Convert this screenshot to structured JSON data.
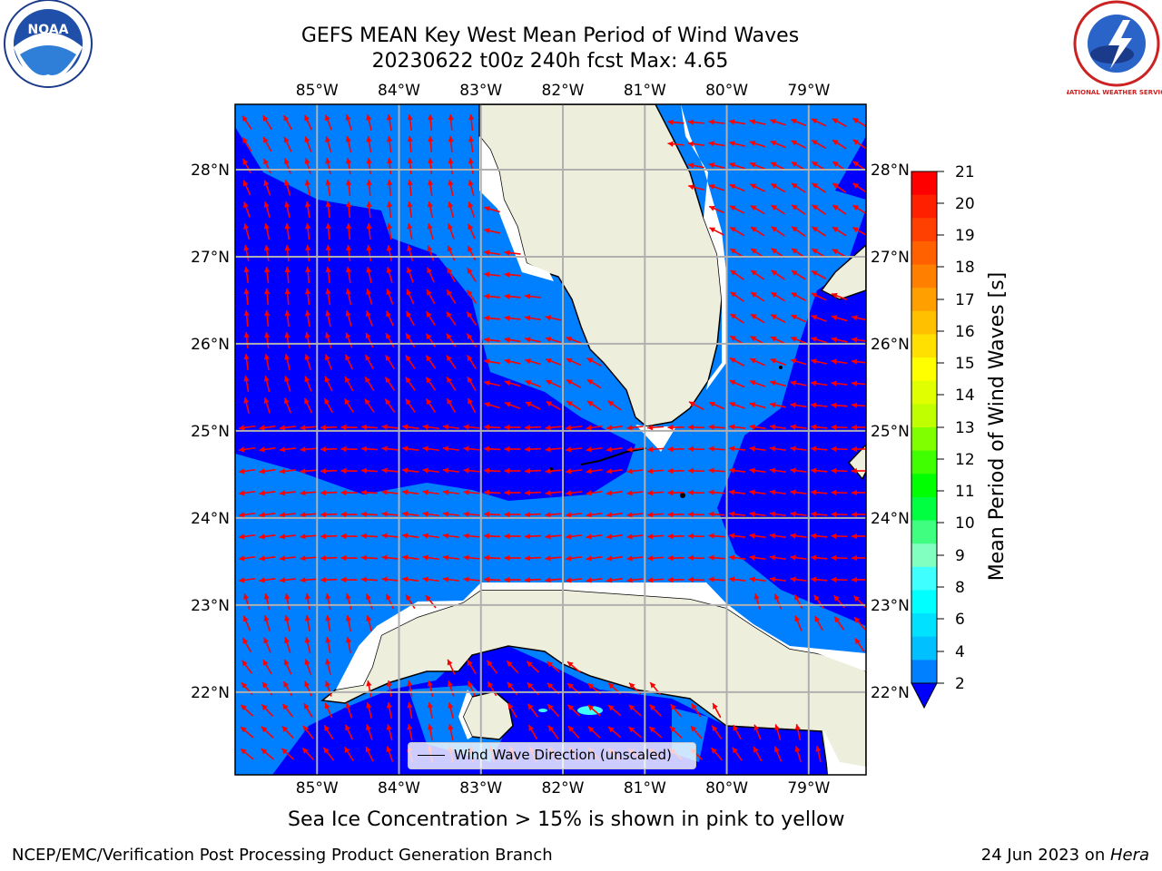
{
  "title": {
    "line1": "GEFS MEAN Key West Mean Period of Wind Waves",
    "line2": "20230622 t00z 240h fcst   Max: 4.65"
  },
  "logos": {
    "noaa_text": "NOAA",
    "nws_text": "NATIONAL WEATHER SERVICE"
  },
  "map": {
    "lon_ticks": [
      "85°W",
      "84°W",
      "83°W",
      "82°W",
      "81°W",
      "80°W",
      "79°W"
    ],
    "lat_ticks": [
      "28°N",
      "27°N",
      "26°N",
      "25°N",
      "24°N",
      "23°N",
      "22°N"
    ],
    "lon_values": [
      -85,
      -84,
      -83,
      -82,
      -81,
      -80,
      -79
    ],
    "lat_values": [
      28,
      27,
      26,
      25,
      24,
      23,
      22
    ],
    "extent": {
      "lon_min": -86,
      "lon_max": -78.3,
      "lat_min": 21.05,
      "lat_max": 28.75
    },
    "ocean_light_color": "#0080ff",
    "ocean_dark_color": "#0000ff",
    "land_color": "#eeeedd",
    "arrow_color": "#ff0000",
    "legend_label": "Wind Wave Direction (unscaled)"
  },
  "colorbar": {
    "label": "Mean Period of Wind Waves [s]",
    "ticks": [
      "21",
      "20",
      "19",
      "18",
      "17",
      "16",
      "15",
      "14",
      "13",
      "12",
      "11",
      "10",
      "9",
      "8",
      "6",
      "4",
      "2"
    ],
    "colors": [
      "#ff0000",
      "#ff2000",
      "#ff4000",
      "#ff6000",
      "#ff8000",
      "#ffa000",
      "#ffc000",
      "#ffe000",
      "#ffff00",
      "#e0ff00",
      "#c0ff00",
      "#80ff00",
      "#40ff00",
      "#00ff00",
      "#00ff40",
      "#40ff80",
      "#80ffc0",
      "#40ffff",
      "#00ffff",
      "#00e0ff",
      "#00c0ff",
      "#0080ff"
    ],
    "under_color": "#0000ff"
  },
  "note": "Sea Ice Concentration > 15% is shown in pink to yellow",
  "footer": {
    "left": "NCEP/EMC/Verification Post Processing Product Generation Branch",
    "right_prefix": "24 Jun 2023 on ",
    "right_host": "Hera"
  }
}
